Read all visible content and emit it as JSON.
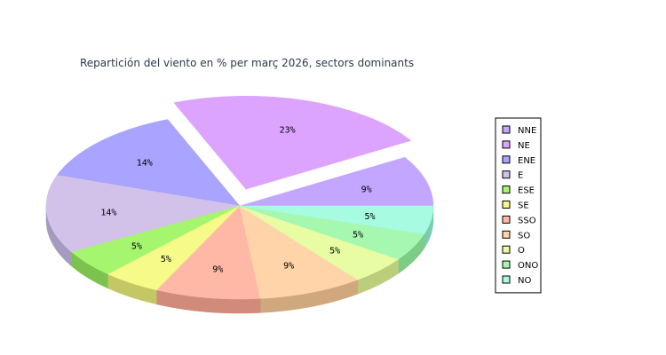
{
  "chart_data": {
    "type": "pie",
    "title": "Repartición del viento en % per març 2026, sectors dominants",
    "legend_position": "right",
    "exploded": [
      "NE"
    ],
    "slices": [
      {
        "label": "NNE",
        "value": 9,
        "text": "9%",
        "color": "#c3a6ff",
        "side": "#8f6fd6"
      },
      {
        "label": "NE",
        "value": 23,
        "text": "23%",
        "color": "#dca4ff",
        "side": "#b07ad8"
      },
      {
        "label": "ENE",
        "value": 14,
        "text": "14%",
        "color": "#a9a4ff",
        "side": "#7d78d8"
      },
      {
        "label": "E",
        "value": 14,
        "text": "14%",
        "color": "#d2c2ea",
        "side": "#a59ac0"
      },
      {
        "label": "ESE",
        "value": 5,
        "text": "5%",
        "color": "#a5f56f",
        "side": "#7cc24e"
      },
      {
        "label": "SE",
        "value": 5,
        "text": "5%",
        "color": "#f6fa88",
        "side": "#c4c864"
      },
      {
        "label": "SSO",
        "value": 9,
        "text": "9%",
        "color": "#ffb8a6",
        "side": "#d08b7a"
      },
      {
        "label": "SO",
        "value": 9,
        "text": "9%",
        "color": "#ffd4a8",
        "side": "#d0a87e"
      },
      {
        "label": "O",
        "value": 5,
        "text": "5%",
        "color": "#e8fca3",
        "side": "#bccd7c"
      },
      {
        "label": "ONO",
        "value": 5,
        "text": "5%",
        "color": "#a6f8b0",
        "side": "#7ccb86"
      },
      {
        "label": "NO",
        "value": 5,
        "text": "5%",
        "color": "#a6fbe0",
        "side": "#7bcdb2"
      }
    ]
  }
}
